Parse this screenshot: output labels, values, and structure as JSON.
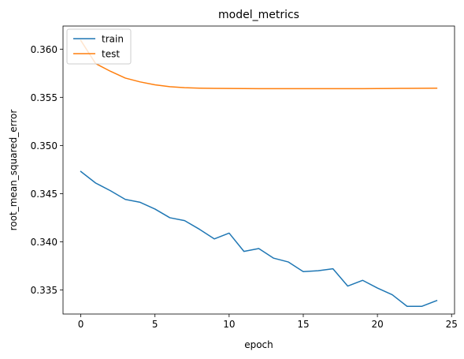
{
  "chart_data": {
    "type": "line",
    "title": "model_metrics",
    "xlabel": "epoch",
    "ylabel": "root_mean_squared_error",
    "xlim": [
      -1.2,
      25.2
    ],
    "ylim": [
      0.3325,
      0.3624
    ],
    "xticks": [
      0,
      5,
      10,
      15,
      20,
      25
    ],
    "yticks": [
      0.335,
      0.34,
      0.345,
      0.35,
      0.355,
      0.36
    ],
    "ytick_labels": [
      "0.335",
      "0.340",
      "0.345",
      "0.350",
      "0.355",
      "0.360"
    ],
    "grid": false,
    "legend_position": "top-left",
    "x": [
      0,
      1,
      2,
      3,
      4,
      5,
      6,
      7,
      8,
      9,
      10,
      11,
      12,
      13,
      14,
      15,
      16,
      17,
      18,
      19,
      20,
      21,
      22,
      23,
      24
    ],
    "series": [
      {
        "name": "train",
        "color": "#1f77b4",
        "values": [
          0.3473,
          0.3461,
          0.3453,
          0.3444,
          0.3441,
          0.3434,
          0.3425,
          0.3422,
          0.3413,
          0.3403,
          0.3409,
          0.339,
          0.3393,
          0.3383,
          0.3379,
          0.3369,
          0.337,
          0.3372,
          0.3354,
          0.336,
          0.3352,
          0.3345,
          0.3333,
          0.3333,
          0.3339
        ]
      },
      {
        "name": "test",
        "color": "#ff7f0e",
        "values": [
          0.3609,
          0.3585,
          0.3577,
          0.357,
          0.3566,
          0.3563,
          0.3561,
          0.356,
          0.35595,
          0.35593,
          0.35592,
          0.35591,
          0.3559,
          0.3559,
          0.3559,
          0.3559,
          0.3559,
          0.3559,
          0.3559,
          0.3559,
          0.35591,
          0.35592,
          0.35593,
          0.35594,
          0.35595
        ]
      }
    ]
  }
}
